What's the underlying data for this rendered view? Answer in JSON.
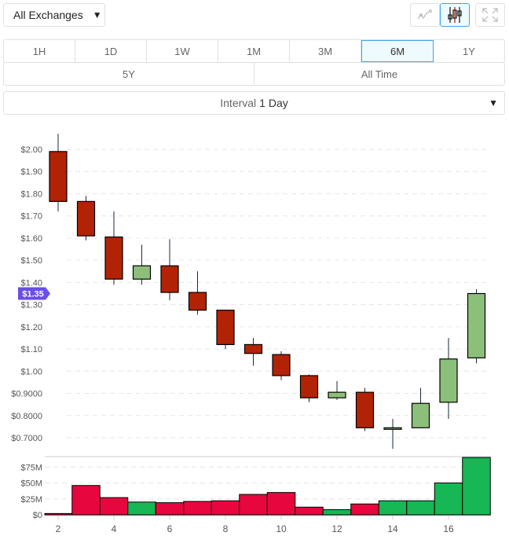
{
  "toolbar": {
    "exchange": "All Exchanges",
    "chart_types": [
      "line-chart-icon",
      "candlestick-icon"
    ],
    "selected_chart_type": "candlestick-icon",
    "fullscreen": "expand-icon"
  },
  "ranges": {
    "row1": [
      "1H",
      "1D",
      "1W",
      "1M",
      "3M",
      "6M",
      "1Y"
    ],
    "row2": [
      "5Y",
      "All Time"
    ],
    "selected": "6M"
  },
  "interval": {
    "label": "Interval",
    "value": "1 Day"
  },
  "colors": {
    "up": "#8cc07a",
    "down": "#b22305",
    "vol_up": "#16b754",
    "vol_down": "#e8063f",
    "price_tag": "#6a4ee6"
  },
  "chart_data": {
    "type": "candlestick",
    "current_price_label": "$1.35",
    "current_price": 1.35,
    "x_ticks": [
      "2",
      "4",
      "6",
      "8",
      "10",
      "12",
      "14",
      "16"
    ],
    "y_ticks": [
      "$2.00",
      "$1.90",
      "$1.80",
      "$1.70",
      "$1.60",
      "$1.50",
      "$1.40",
      "$1.30",
      "$1.20",
      "$1.10",
      "$1.00",
      "$0.9000",
      "$0.8000",
      "$0.7000"
    ],
    "y_tick_values": [
      2.0,
      1.9,
      1.8,
      1.7,
      1.6,
      1.5,
      1.4,
      1.3,
      1.2,
      1.1,
      1.0,
      0.9,
      0.8,
      0.7
    ],
    "vol_ticks": [
      "$75M",
      "$50M",
      "$25M",
      "$0"
    ],
    "vol_tick_values": [
      75,
      50,
      25,
      0
    ],
    "grid": true,
    "candles": [
      {
        "x": 2,
        "o": 1.99,
        "h": 2.07,
        "l": 1.72,
        "c": 1.765,
        "v": 2
      },
      {
        "x": 3,
        "o": 1.765,
        "h": 1.79,
        "l": 1.59,
        "c": 1.61,
        "v": 46
      },
      {
        "x": 4,
        "o": 1.605,
        "h": 1.72,
        "l": 1.39,
        "c": 1.415,
        "v": 27
      },
      {
        "x": 5,
        "o": 1.415,
        "h": 1.57,
        "l": 1.39,
        "c": 1.475,
        "v": 20
      },
      {
        "x": 6,
        "o": 1.475,
        "h": 1.595,
        "l": 1.32,
        "c": 1.355,
        "v": 19
      },
      {
        "x": 7,
        "o": 1.355,
        "h": 1.45,
        "l": 1.255,
        "c": 1.275,
        "v": 21
      },
      {
        "x": 8,
        "o": 1.275,
        "h": 1.275,
        "l": 1.1,
        "c": 1.12,
        "v": 22
      },
      {
        "x": 9,
        "o": 1.12,
        "h": 1.15,
        "l": 1.025,
        "c": 1.08,
        "v": 32
      },
      {
        "x": 10,
        "o": 1.075,
        "h": 1.09,
        "l": 0.96,
        "c": 0.98,
        "v": 35
      },
      {
        "x": 11,
        "o": 0.98,
        "h": 0.985,
        "l": 0.86,
        "c": 0.88,
        "v": 12
      },
      {
        "x": 12,
        "o": 0.88,
        "h": 0.955,
        "l": 0.87,
        "c": 0.905,
        "v": 8
      },
      {
        "x": 13,
        "o": 0.905,
        "h": 0.925,
        "l": 0.73,
        "c": 0.745,
        "v": 17
      },
      {
        "x": 14,
        "o": 0.74,
        "h": 0.785,
        "l": 0.65,
        "c": 0.745,
        "v": 22
      },
      {
        "x": 15,
        "o": 0.745,
        "h": 0.925,
        "l": 0.745,
        "c": 0.855,
        "v": 22
      },
      {
        "x": 16,
        "o": 0.86,
        "h": 1.15,
        "l": 0.785,
        "c": 1.055,
        "v": 50
      },
      {
        "x": 17,
        "o": 1.06,
        "h": 1.37,
        "l": 1.035,
        "c": 1.35,
        "v": 90
      }
    ]
  }
}
